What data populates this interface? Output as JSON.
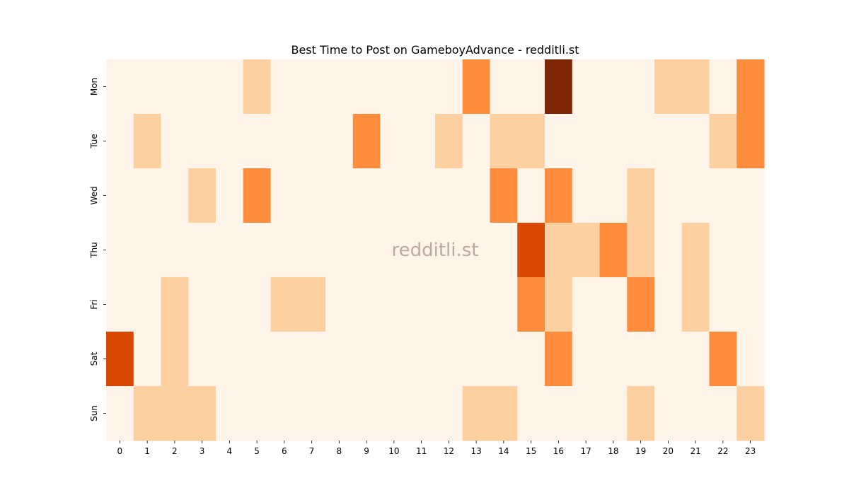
{
  "chart_data": {
    "type": "heatmap",
    "title": "Best Time to Post on GameboyAdvance - redditli.st",
    "watermark": "redditli.st",
    "xlabel": "",
    "ylabel": "",
    "x_categories": [
      "0",
      "1",
      "2",
      "3",
      "4",
      "5",
      "6",
      "7",
      "8",
      "9",
      "10",
      "11",
      "12",
      "13",
      "14",
      "15",
      "16",
      "17",
      "18",
      "19",
      "20",
      "21",
      "22",
      "23"
    ],
    "y_categories": [
      "Mon",
      "Tue",
      "Wed",
      "Thu",
      "Fri",
      "Sat",
      "Sun"
    ],
    "values": [
      [
        0,
        0,
        0,
        0,
        0,
        1,
        0,
        0,
        0,
        0,
        0,
        0,
        0,
        2,
        0,
        0,
        4,
        0,
        0,
        0,
        1,
        1,
        0,
        2
      ],
      [
        0,
        1,
        0,
        0,
        0,
        0,
        0,
        0,
        0,
        2,
        0,
        0,
        1,
        0,
        1,
        1,
        0,
        0,
        0,
        0,
        0,
        0,
        1,
        2
      ],
      [
        0,
        0,
        0,
        1,
        0,
        2,
        0,
        0,
        0,
        0,
        0,
        0,
        0,
        0,
        2,
        0,
        2,
        0,
        0,
        1,
        0,
        0,
        0,
        0
      ],
      [
        0,
        0,
        0,
        0,
        0,
        0,
        0,
        0,
        0,
        0,
        0,
        0,
        0,
        0,
        0,
        3,
        1,
        1,
        2,
        1,
        0,
        1,
        0,
        0
      ],
      [
        0,
        0,
        1,
        0,
        0,
        0,
        1,
        1,
        0,
        0,
        0,
        0,
        0,
        0,
        0,
        2,
        1,
        0,
        0,
        2,
        0,
        1,
        0,
        0
      ],
      [
        3,
        0,
        1,
        0,
        0,
        0,
        0,
        0,
        0,
        0,
        0,
        0,
        0,
        0,
        0,
        0,
        2,
        0,
        0,
        0,
        0,
        0,
        2,
        0
      ],
      [
        0,
        1,
        1,
        1,
        0,
        0,
        0,
        0,
        0,
        0,
        0,
        0,
        0,
        1,
        1,
        0,
        0,
        0,
        0,
        1,
        0,
        0,
        0,
        1
      ]
    ],
    "color_scale": [
      "#fef4e9",
      "#fdd0a2",
      "#fd8d3c",
      "#d94801",
      "#7f2704"
    ],
    "colorbar": false,
    "grid": false
  }
}
